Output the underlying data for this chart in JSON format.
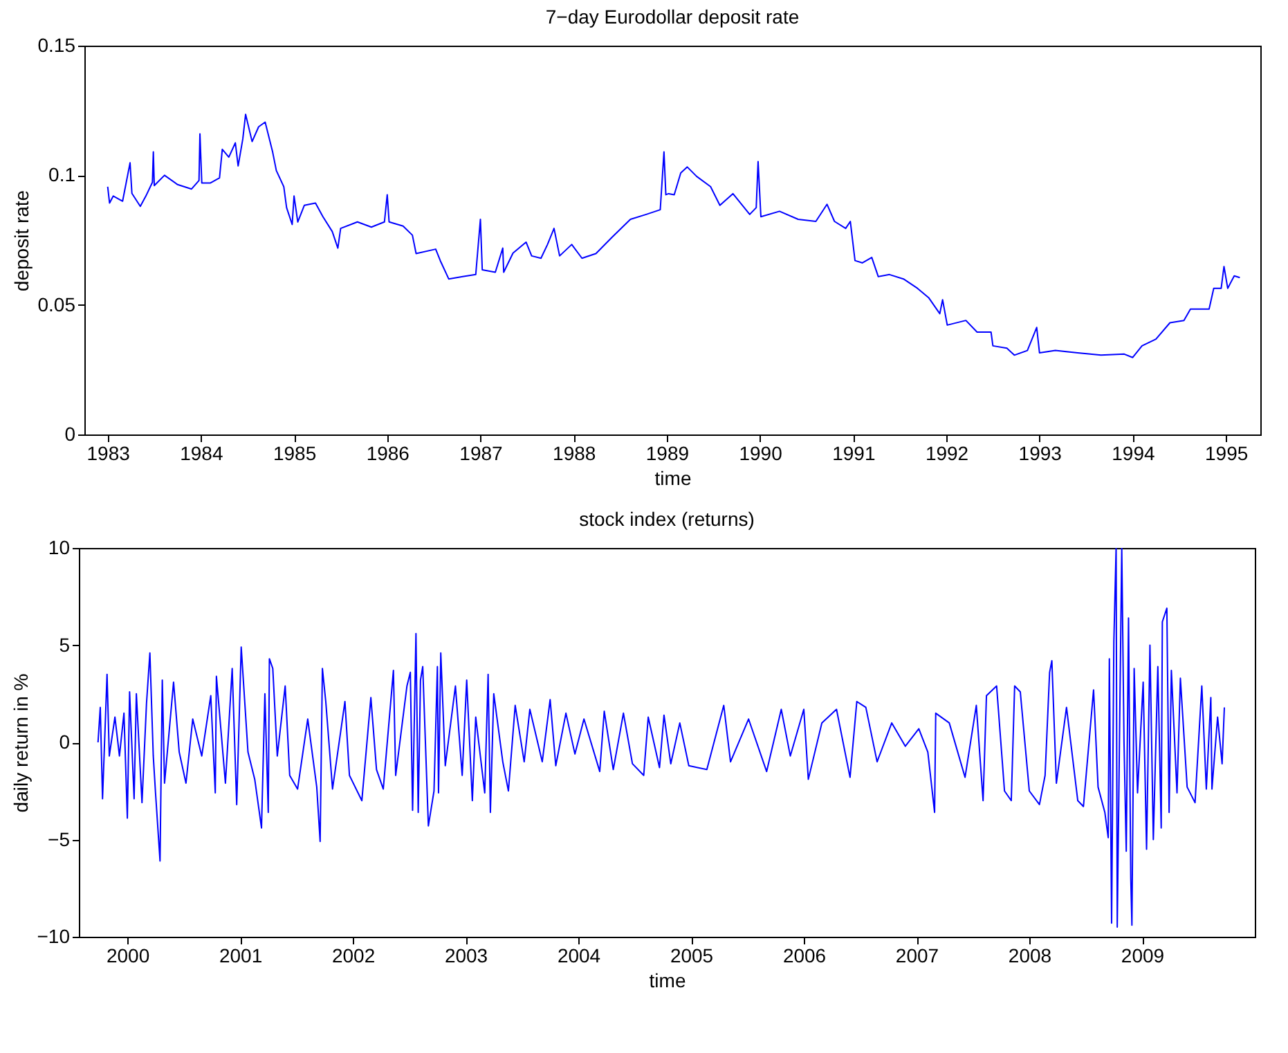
{
  "chart_data": [
    {
      "type": "line",
      "title": "7−day Eurodollar deposit rate",
      "xlabel": "time",
      "ylabel": "deposit rate",
      "xlim": [
        1982.75,
        1995.37
      ],
      "xticks": [
        1983,
        1984,
        1985,
        1986,
        1987,
        1988,
        1989,
        1990,
        1991,
        1992,
        1993,
        1994,
        1995
      ],
      "ylim": [
        0,
        0.15
      ],
      "yticks": [
        0,
        0.05,
        0.1,
        0.15
      ],
      "series": [
        {
          "color": "#0000ff",
          "x": [
            1983.0,
            1983.02,
            1983.06,
            1983.16,
            1983.24,
            1983.26,
            1983.35,
            1983.41,
            1983.48,
            1983.49,
            1983.5,
            1983.61,
            1983.75,
            1983.9,
            1983.98,
            1983.99,
            1984.01,
            1984.1,
            1984.2,
            1984.23,
            1984.3,
            1984.37,
            1984.4,
            1984.45,
            1984.48,
            1984.55,
            1984.62,
            1984.69,
            1984.77,
            1984.81,
            1984.89,
            1984.92,
            1984.98,
            1985.0,
            1985.04,
            1985.11,
            1985.23,
            1985.31,
            1985.41,
            1985.47,
            1985.5,
            1985.68,
            1985.83,
            1985.97,
            1986.0,
            1986.02,
            1986.17,
            1986.27,
            1986.31,
            1986.52,
            1986.57,
            1986.66,
            1986.81,
            1986.95,
            1987.0,
            1987.02,
            1987.16,
            1987.24,
            1987.25,
            1987.35,
            1987.49,
            1987.55,
            1987.65,
            1987.72,
            1987.79,
            1987.85,
            1987.98,
            1988.09,
            1988.24,
            1988.41,
            1988.61,
            1988.78,
            1988.93,
            1988.97,
            1988.99,
            1989.02,
            1989.08,
            1989.15,
            1989.22,
            1989.32,
            1989.47,
            1989.57,
            1989.71,
            1989.89,
            1989.96,
            1989.98,
            1990.01,
            1990.21,
            1990.41,
            1990.6,
            1990.72,
            1990.8,
            1990.92,
            1990.97,
            1991.02,
            1991.1,
            1991.2,
            1991.27,
            1991.39,
            1991.54,
            1991.69,
            1991.81,
            1991.93,
            1991.96,
            1992.01,
            1992.21,
            1992.33,
            1992.48,
            1992.5,
            1992.65,
            1992.73,
            1992.87,
            1992.97,
            1993.0,
            1993.17,
            1993.41,
            1993.66,
            1993.91,
            1994.0,
            1994.1,
            1994.25,
            1994.4,
            1994.55,
            1994.62,
            1994.82,
            1994.87,
            1994.95,
            1994.98,
            1995.02,
            1995.09,
            1995.15
          ],
          "values": [
            0.0956,
            0.0893,
            0.092,
            0.09,
            0.1048,
            0.093,
            0.088,
            0.092,
            0.0973,
            0.109,
            0.096,
            0.1,
            0.0964,
            0.0947,
            0.098,
            0.116,
            0.097,
            0.097,
            0.099,
            0.11,
            0.107,
            0.1125,
            0.1036,
            0.114,
            0.1235,
            0.113,
            0.1187,
            0.1205,
            0.109,
            0.1018,
            0.0956,
            0.0875,
            0.081,
            0.092,
            0.082,
            0.0884,
            0.0893,
            0.084,
            0.0783,
            0.0719,
            0.0795,
            0.082,
            0.08,
            0.082,
            0.0925,
            0.082,
            0.0804,
            0.0769,
            0.0698,
            0.0715,
            0.067,
            0.06,
            0.0609,
            0.0617,
            0.083,
            0.0635,
            0.0626,
            0.0719,
            0.0626,
            0.07,
            0.0742,
            0.0689,
            0.068,
            0.0733,
            0.0795,
            0.0689,
            0.0733,
            0.068,
            0.0698,
            0.076,
            0.083,
            0.0849,
            0.0867,
            0.109,
            0.0925,
            0.0929,
            0.0925,
            0.1009,
            0.1032,
            0.0996,
            0.0956,
            0.0884,
            0.0929,
            0.0849,
            0.0875,
            0.1053,
            0.084,
            0.0861,
            0.083,
            0.0822,
            0.0888,
            0.0822,
            0.0795,
            0.0822,
            0.0671,
            0.0662,
            0.0683,
            0.0609,
            0.0617,
            0.06,
            0.0564,
            0.0528,
            0.0466,
            0.052,
            0.0422,
            0.044,
            0.0395,
            0.0395,
            0.0342,
            0.0333,
            0.0306,
            0.0324,
            0.0413,
            0.0315,
            0.0324,
            0.0315,
            0.0306,
            0.031,
            0.0297,
            0.0342,
            0.0368,
            0.0431,
            0.044,
            0.0484,
            0.0484,
            0.0564,
            0.0564,
            0.0648,
            0.0564,
            0.0612,
            0.0605
          ]
        }
      ]
    },
    {
      "type": "line",
      "title": "stock index (returns)",
      "xlabel": "time",
      "ylabel": "daily return in %",
      "xlim": [
        1999.57,
        2010.0
      ],
      "xticks": [
        2000,
        2001,
        2002,
        2003,
        2004,
        2005,
        2006,
        2007,
        2008,
        2009
      ],
      "ylim": [
        -10,
        10
      ],
      "yticks": [
        -10,
        -5,
        0,
        5,
        10
      ],
      "series": [
        {
          "color": "#0000ff",
          "x": [
            1999.74,
            1999.76,
            1999.78,
            1999.82,
            1999.84,
            1999.89,
            1999.93,
            1999.97,
            2000.0,
            2000.02,
            2000.06,
            2000.08,
            2000.13,
            2000.17,
            2000.2,
            2000.23,
            2000.25,
            2000.29,
            2000.31,
            2000.33,
            2000.41,
            2000.46,
            2000.52,
            2000.58,
            2000.66,
            2000.74,
            2000.78,
            2000.79,
            2000.87,
            2000.93,
            2000.97,
            2001.01,
            2001.07,
            2001.13,
            2001.19,
            2001.22,
            2001.25,
            2001.26,
            2001.29,
            2001.33,
            2001.4,
            2001.44,
            2001.51,
            2001.6,
            2001.68,
            2001.71,
            2001.73,
            2001.76,
            2001.82,
            2001.93,
            2001.97,
            2002.08,
            2002.16,
            2002.21,
            2002.27,
            2002.36,
            2002.38,
            2002.48,
            2002.51,
            2002.53,
            2002.56,
            2002.58,
            2002.6,
            2002.62,
            2002.67,
            2002.72,
            2002.75,
            2002.76,
            2002.78,
            2002.82,
            2002.91,
            2002.97,
            2003.01,
            2003.06,
            2003.09,
            2003.17,
            2003.2,
            2003.22,
            2003.25,
            2003.33,
            2003.38,
            2003.44,
            2003.52,
            2003.57,
            2003.68,
            2003.75,
            2003.8,
            2003.89,
            2003.97,
            2004.05,
            2004.19,
            2004.23,
            2004.31,
            2004.4,
            2004.48,
            2004.58,
            2004.62,
            2004.72,
            2004.76,
            2004.82,
            2004.9,
            2004.98,
            2005.14,
            2005.29,
            2005.35,
            2005.51,
            2005.67,
            2005.8,
            2005.88,
            2006.0,
            2006.04,
            2006.16,
            2006.29,
            2006.41,
            2006.47,
            2006.55,
            2006.65,
            2006.78,
            2006.9,
            2007.02,
            2007.1,
            2007.16,
            2007.17,
            2007.29,
            2007.43,
            2007.53,
            2007.59,
            2007.62,
            2007.71,
            2007.78,
            2007.84,
            2007.87,
            2007.92,
            2008.0,
            2008.09,
            2008.14,
            2008.18,
            2008.2,
            2008.24,
            2008.33,
            2008.43,
            2008.48,
            2008.57,
            2008.61,
            2008.67,
            2008.7,
            2008.71,
            2008.73,
            2008.75,
            2008.77,
            2008.78,
            2008.82,
            2008.84,
            2008.86,
            2008.88,
            2008.9,
            2008.91,
            2008.93,
            2008.96,
            2009.01,
            2009.04,
            2009.07,
            2009.1,
            2009.14,
            2009.17,
            2009.18,
            2009.22,
            2009.24,
            2009.26,
            2009.31,
            2009.34,
            2009.4,
            2009.47,
            2009.53,
            2009.57,
            2009.61,
            2009.62,
            2009.67,
            2009.71,
            2009.73
          ],
          "values": [
            0.0,
            1.8,
            -2.9,
            3.5,
            -0.7,
            1.3,
            -0.7,
            1.5,
            -3.9,
            2.6,
            -2.9,
            2.5,
            -3.1,
            2.0,
            4.6,
            -0.7,
            -2.6,
            -6.1,
            3.2,
            -2.1,
            3.1,
            -0.5,
            -2.1,
            1.2,
            -0.7,
            2.4,
            -2.6,
            3.4,
            -2.1,
            3.8,
            -3.2,
            4.9,
            -0.5,
            -1.9,
            -4.4,
            2.5,
            -3.6,
            4.3,
            3.8,
            -0.7,
            2.9,
            -1.7,
            -2.4,
            1.2,
            -2.3,
            -5.1,
            3.8,
            2.1,
            -2.4,
            2.1,
            -1.7,
            -3.0,
            2.3,
            -1.4,
            -2.4,
            3.7,
            -1.7,
            2.9,
            3.6,
            -3.5,
            5.6,
            -3.6,
            3.2,
            3.9,
            -4.3,
            -2.5,
            3.9,
            -2.6,
            4.6,
            -1.2,
            2.9,
            -1.7,
            3.2,
            -3.0,
            1.3,
            -2.6,
            3.5,
            -3.6,
            2.5,
            -1.0,
            -2.5,
            1.9,
            -1.0,
            1.7,
            -1.0,
            2.2,
            -1.2,
            1.5,
            -0.6,
            1.2,
            -1.5,
            1.6,
            -1.4,
            1.5,
            -1.1,
            -1.7,
            1.3,
            -1.3,
            1.4,
            -1.1,
            1.0,
            -1.2,
            -1.4,
            1.9,
            -1.0,
            1.2,
            -1.5,
            1.7,
            -0.7,
            1.7,
            -1.9,
            1.0,
            1.7,
            -1.8,
            2.1,
            1.8,
            -1.0,
            1.0,
            -0.2,
            0.7,
            -0.5,
            -3.6,
            1.5,
            1.0,
            -1.8,
            1.9,
            -3.0,
            2.4,
            2.9,
            -2.5,
            -3.0,
            2.9,
            2.6,
            -2.5,
            -3.2,
            -1.7,
            3.6,
            4.2,
            -2.1,
            1.8,
            -3.0,
            -3.3,
            2.7,
            -2.3,
            -3.6,
            -4.9,
            4.3,
            -9.3,
            5.2,
            10,
            -9.5,
            10,
            0,
            -5.6,
            6.4,
            -7.0,
            -9.4,
            3.8,
            -2.6,
            3.1,
            -5.5,
            5.0,
            -5.0,
            3.9,
            -4.4,
            6.2,
            6.9,
            -3.6,
            3.7,
            -2.6,
            3.3,
            -2.3,
            -3.1,
            2.9,
            -2.4,
            2.3,
            -2.4,
            1.3,
            -1.1,
            1.8
          ]
        }
      ]
    }
  ]
}
